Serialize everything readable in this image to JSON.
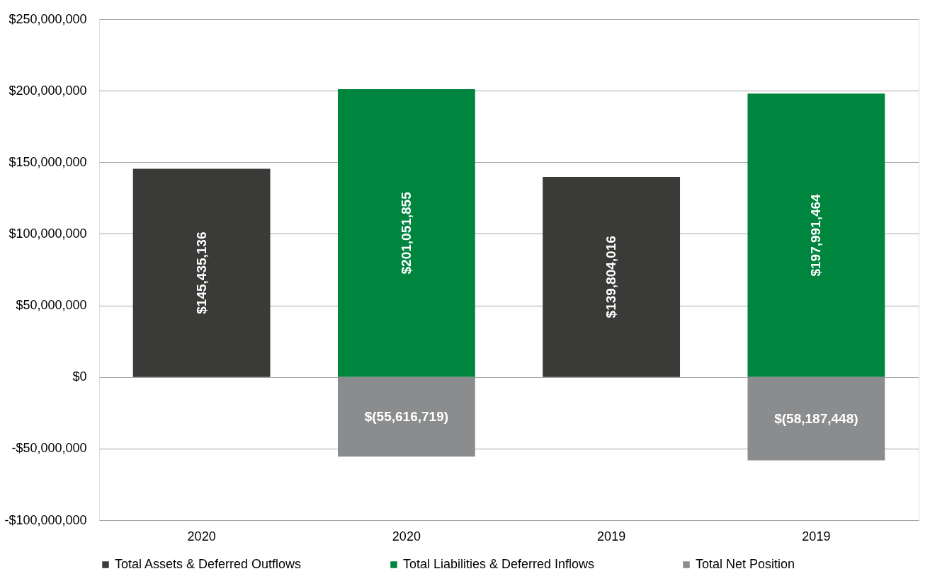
{
  "chart_data": {
    "type": "bar",
    "stacked": true,
    "categories": [
      "2020",
      "2020",
      "2019",
      "2019"
    ],
    "series": [
      {
        "name": "Total Assets & Deferred Outflows",
        "color": "#3a3b38",
        "values": [
          145435136,
          null,
          139804016,
          null
        ],
        "value_labels": [
          "$145,435,136",
          null,
          "$139,804,016",
          null
        ]
      },
      {
        "name": "Total Liabilities & Deferred Inflows",
        "color": "#00853f",
        "values": [
          null,
          201051855,
          null,
          197991464
        ],
        "value_labels": [
          null,
          "$201,051,855",
          null,
          "$197,991,464"
        ]
      },
      {
        "name": "Total Net Position",
        "color": "#8b8c8e",
        "values": [
          null,
          -55616719,
          null,
          -58187448
        ],
        "value_labels": [
          null,
          "$(55,616,719)",
          null,
          "$(58,187,448)"
        ]
      }
    ],
    "ylim": [
      -100000000,
      250000000
    ],
    "yticks": [
      {
        "value": -100000000,
        "label": "-$100,000,000"
      },
      {
        "value": -50000000,
        "label": "-$50,000,000"
      },
      {
        "value": 0,
        "label": "$0"
      },
      {
        "value": 50000000,
        "label": "$50,000,000"
      },
      {
        "value": 100000000,
        "label": "$100,000,000"
      },
      {
        "value": 150000000,
        "label": "$150,000,000"
      },
      {
        "value": 200000000,
        "label": "$200,000,000"
      },
      {
        "value": 250000000,
        "label": "$250,000,000"
      }
    ],
    "grid": "y",
    "legend": "bottom"
  }
}
